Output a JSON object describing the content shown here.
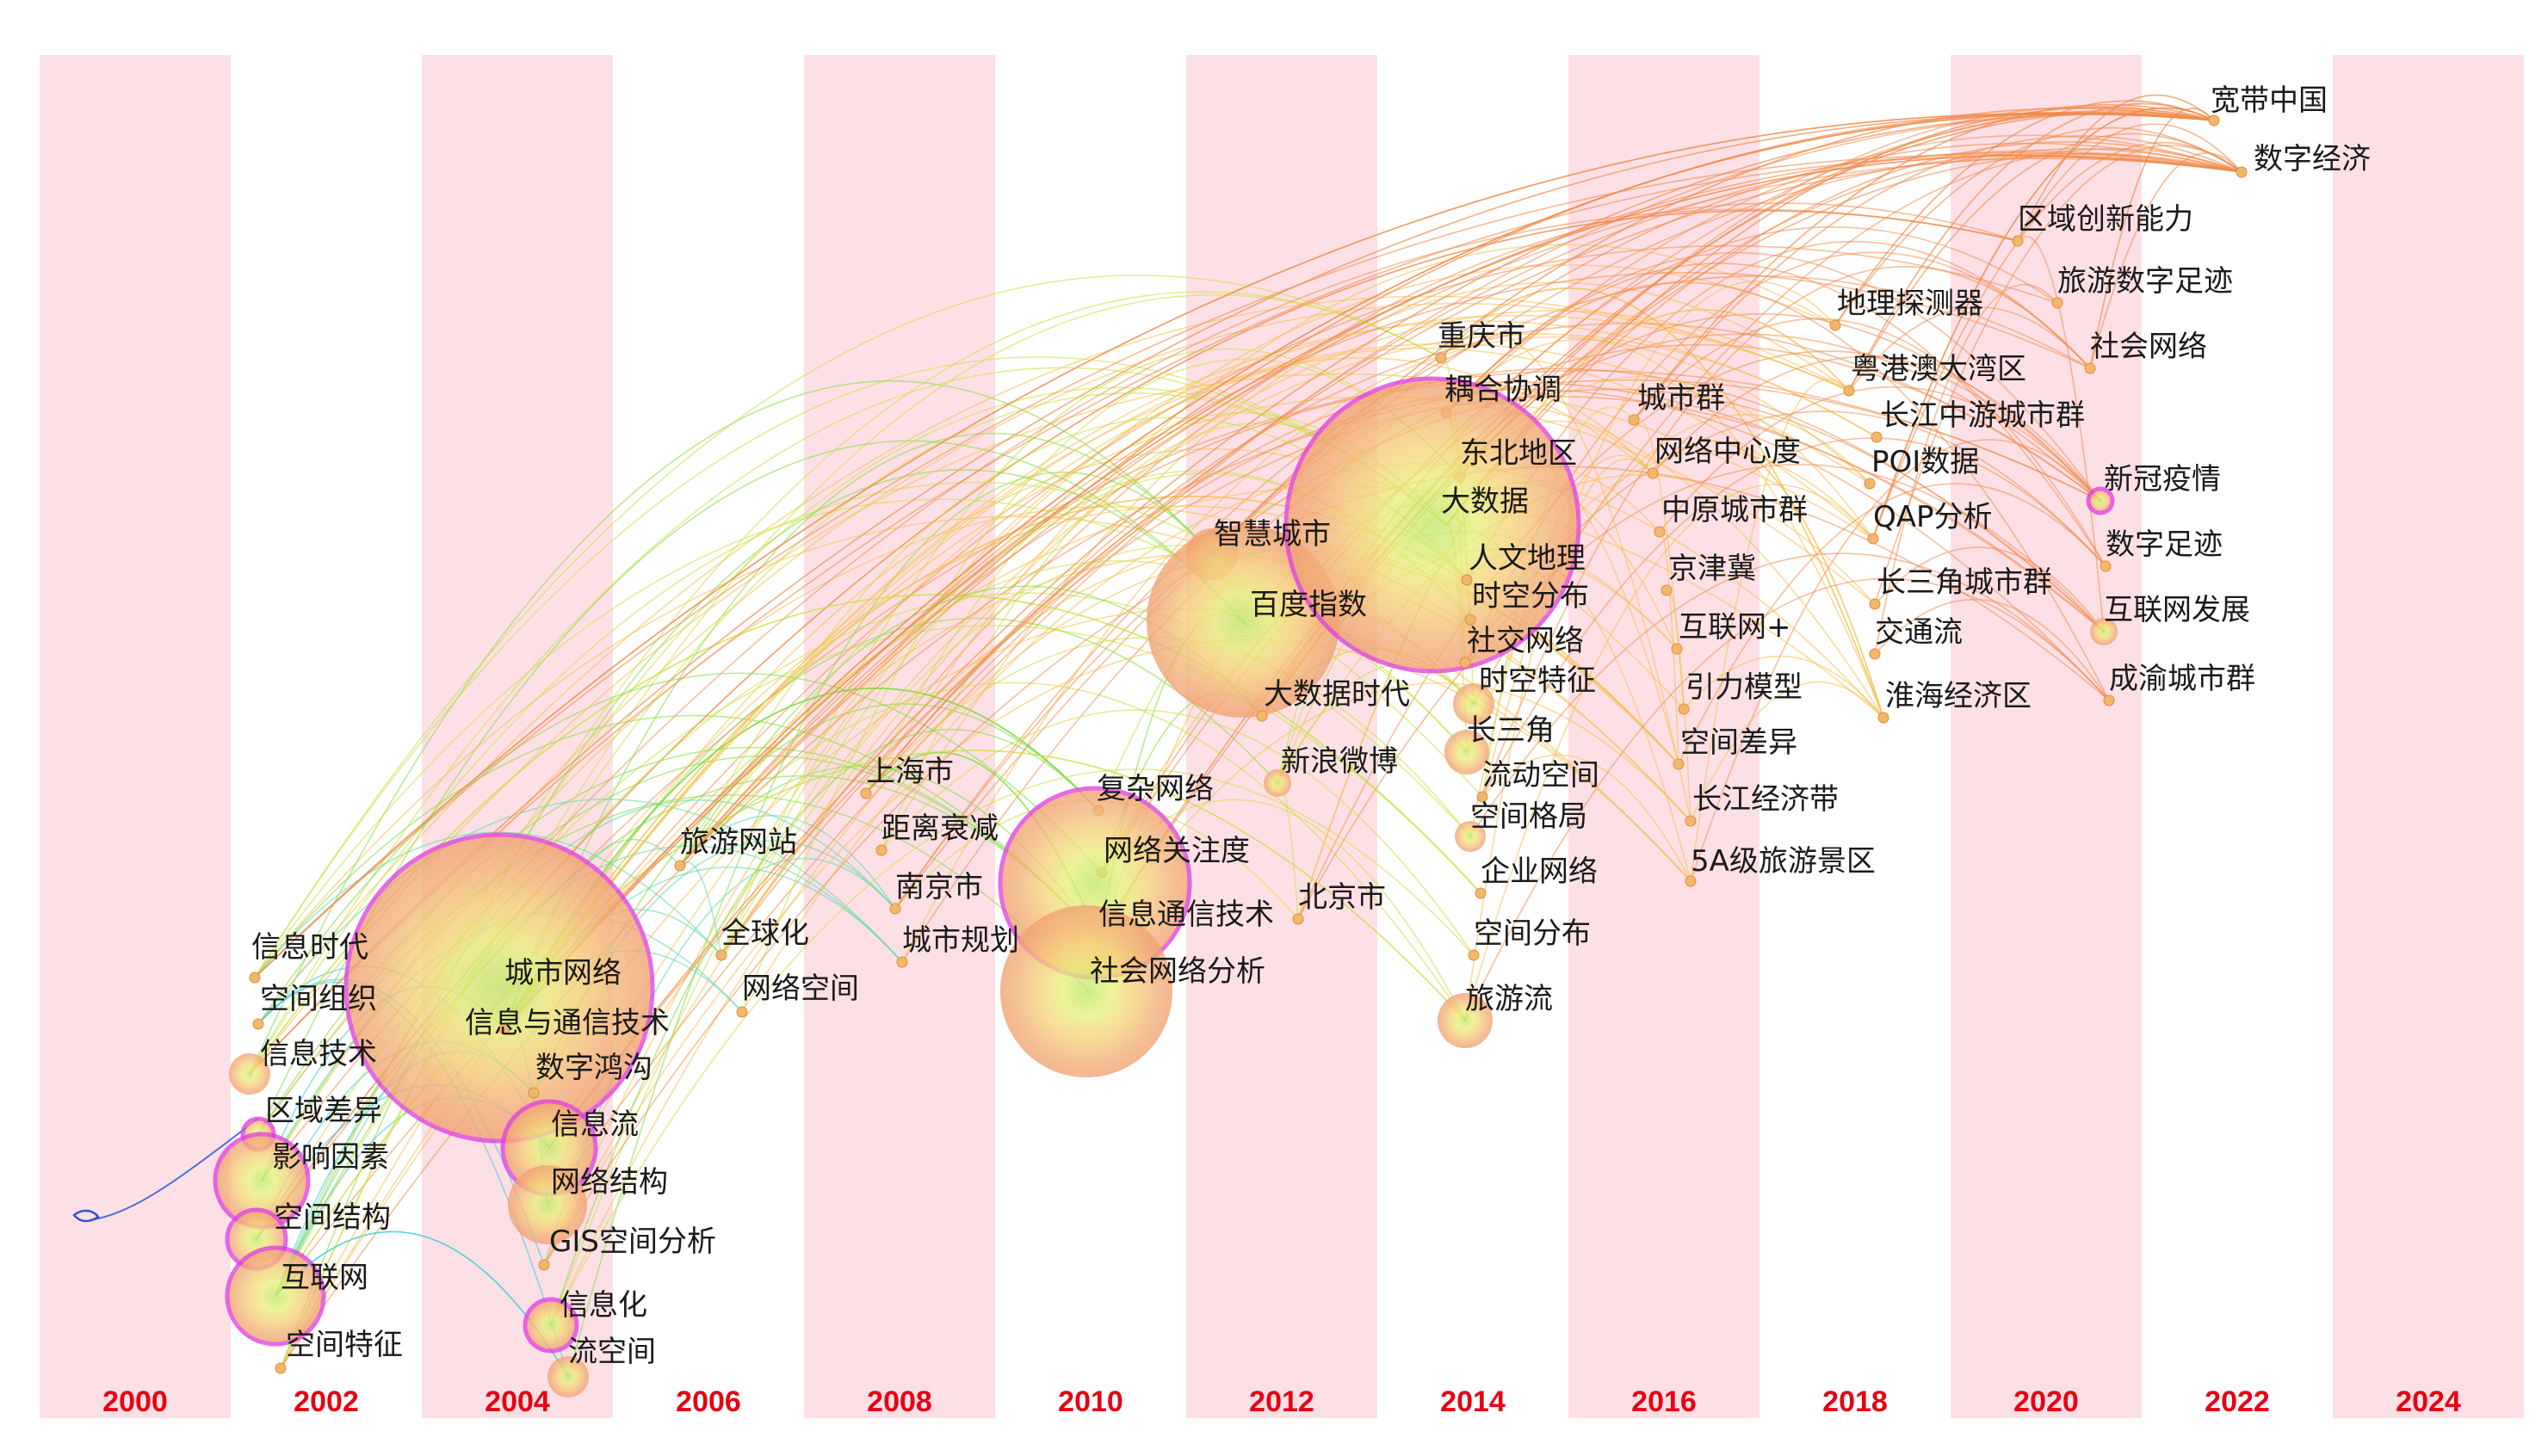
{
  "timeline": {
    "years": [
      "2000",
      "2002",
      "2004",
      "2006",
      "2008",
      "2010",
      "2012",
      "2014",
      "2016",
      "2018",
      "2020",
      "2022",
      "2024"
    ],
    "band_color": "#fde0e6",
    "year_label_color": "#e60012"
  },
  "keywords": [
    {
      "id": "k1",
      "label": "信息时代",
      "year": 2001
    },
    {
      "id": "k2",
      "label": "空间组织",
      "year": 2001
    },
    {
      "id": "k3",
      "label": "信息技术",
      "year": 2001
    },
    {
      "id": "k4",
      "label": "区域差异",
      "year": 2001
    },
    {
      "id": "k5",
      "label": "影响因素",
      "year": 2001
    },
    {
      "id": "k6",
      "label": "空间结构",
      "year": 2001
    },
    {
      "id": "k7",
      "label": "互联网",
      "year": 2001
    },
    {
      "id": "k8",
      "label": "空间特征",
      "year": 2001
    },
    {
      "id": "k9",
      "label": "城市网络",
      "year": 2003
    },
    {
      "id": "k10",
      "label": "信息与通信技术",
      "year": 2003
    },
    {
      "id": "k11",
      "label": "数字鸿沟",
      "year": 2004
    },
    {
      "id": "k12",
      "label": "信息流",
      "year": 2004
    },
    {
      "id": "k13",
      "label": "网络结构",
      "year": 2004
    },
    {
      "id": "k14",
      "label": "GIS空间分析",
      "year": 2004
    },
    {
      "id": "k15",
      "label": "信息化",
      "year": 2004
    },
    {
      "id": "k16",
      "label": "流空间",
      "year": 2004
    },
    {
      "id": "k17",
      "label": "旅游网站",
      "year": 2006
    },
    {
      "id": "k18",
      "label": "全球化",
      "year": 2006
    },
    {
      "id": "k19",
      "label": "网络空间",
      "year": 2006
    },
    {
      "id": "k20",
      "label": "上海市",
      "year": 2008
    },
    {
      "id": "k21",
      "label": "距离衰减",
      "year": 2008
    },
    {
      "id": "k22",
      "label": "南京市",
      "year": 2008
    },
    {
      "id": "k23",
      "label": "城市规划",
      "year": 2008
    },
    {
      "id": "k24",
      "label": "复杂网络",
      "year": 2010
    },
    {
      "id": "k25",
      "label": "网络关注度",
      "year": 2010
    },
    {
      "id": "k26",
      "label": "信息通信技术",
      "year": 2010
    },
    {
      "id": "k27",
      "label": "社会网络分析",
      "year": 2010
    },
    {
      "id": "k28",
      "label": "北京市",
      "year": 2011
    },
    {
      "id": "k29",
      "label": "智慧城市",
      "year": 2012
    },
    {
      "id": "k30",
      "label": "百度指数",
      "year": 2012
    },
    {
      "id": "k31",
      "label": "大数据时代",
      "year": 2012
    },
    {
      "id": "k32",
      "label": "新浪微博",
      "year": 2012
    },
    {
      "id": "k33",
      "label": "重庆市",
      "year": 2014
    },
    {
      "id": "k34",
      "label": "耦合协调",
      "year": 2014
    },
    {
      "id": "k35",
      "label": "东北地区",
      "year": 2014
    },
    {
      "id": "k36",
      "label": "大数据",
      "year": 2014
    },
    {
      "id": "k37",
      "label": "人文地理",
      "year": 2014
    },
    {
      "id": "k38",
      "label": "时空分布",
      "year": 2014
    },
    {
      "id": "k39",
      "label": "社交网络",
      "year": 2014
    },
    {
      "id": "k40",
      "label": "时空特征",
      "year": 2014
    },
    {
      "id": "k41",
      "label": "长三角",
      "year": 2014
    },
    {
      "id": "k42",
      "label": "流动空间",
      "year": 2014
    },
    {
      "id": "k43",
      "label": "空间格局",
      "year": 2014
    },
    {
      "id": "k44",
      "label": "企业网络",
      "year": 2014
    },
    {
      "id": "k45",
      "label": "空间分布",
      "year": 2014
    },
    {
      "id": "k46",
      "label": "旅游流",
      "year": 2014
    },
    {
      "id": "k47",
      "label": "城市群",
      "year": 2016
    },
    {
      "id": "k48",
      "label": "网络中心度",
      "year": 2016
    },
    {
      "id": "k49",
      "label": "中原城市群",
      "year": 2016
    },
    {
      "id": "k50",
      "label": "京津冀",
      "year": 2016
    },
    {
      "id": "k51",
      "label": "互联网+",
      "year": 2016
    },
    {
      "id": "k52",
      "label": "引力模型",
      "year": 2016
    },
    {
      "id": "k53",
      "label": "空间差异",
      "year": 2016
    },
    {
      "id": "k54",
      "label": "长江经济带",
      "year": 2016
    },
    {
      "id": "k55",
      "label": "5A级旅游景区",
      "year": 2016
    },
    {
      "id": "k56",
      "label": "地理探测器",
      "year": 2018
    },
    {
      "id": "k57",
      "label": "粤港澳大湾区",
      "year": 2018
    },
    {
      "id": "k58",
      "label": "长江中游城市群",
      "year": 2018
    },
    {
      "id": "k59",
      "label": "POI数据",
      "year": 2018
    },
    {
      "id": "k60",
      "label": "QAP分析",
      "year": 2018
    },
    {
      "id": "k61",
      "label": "长三角城市群",
      "year": 2018
    },
    {
      "id": "k62",
      "label": "交通流",
      "year": 2018
    },
    {
      "id": "k63",
      "label": "淮海经济区",
      "year": 2018
    },
    {
      "id": "k64",
      "label": "区域创新能力",
      "year": 2020
    },
    {
      "id": "k65",
      "label": "旅游数字足迹",
      "year": 2020
    },
    {
      "id": "k66",
      "label": "社会网络",
      "year": 2020
    },
    {
      "id": "k67",
      "label": "新冠疫情",
      "year": 2020
    },
    {
      "id": "k68",
      "label": "数字足迹",
      "year": 2020
    },
    {
      "id": "k69",
      "label": "互联网发展",
      "year": 2020
    },
    {
      "id": "k70",
      "label": "成渝城市群",
      "year": 2020
    },
    {
      "id": "k71",
      "label": "宽带中国",
      "year": 2022
    },
    {
      "id": "k72",
      "label": "数字经济",
      "year": 2022
    }
  ]
}
